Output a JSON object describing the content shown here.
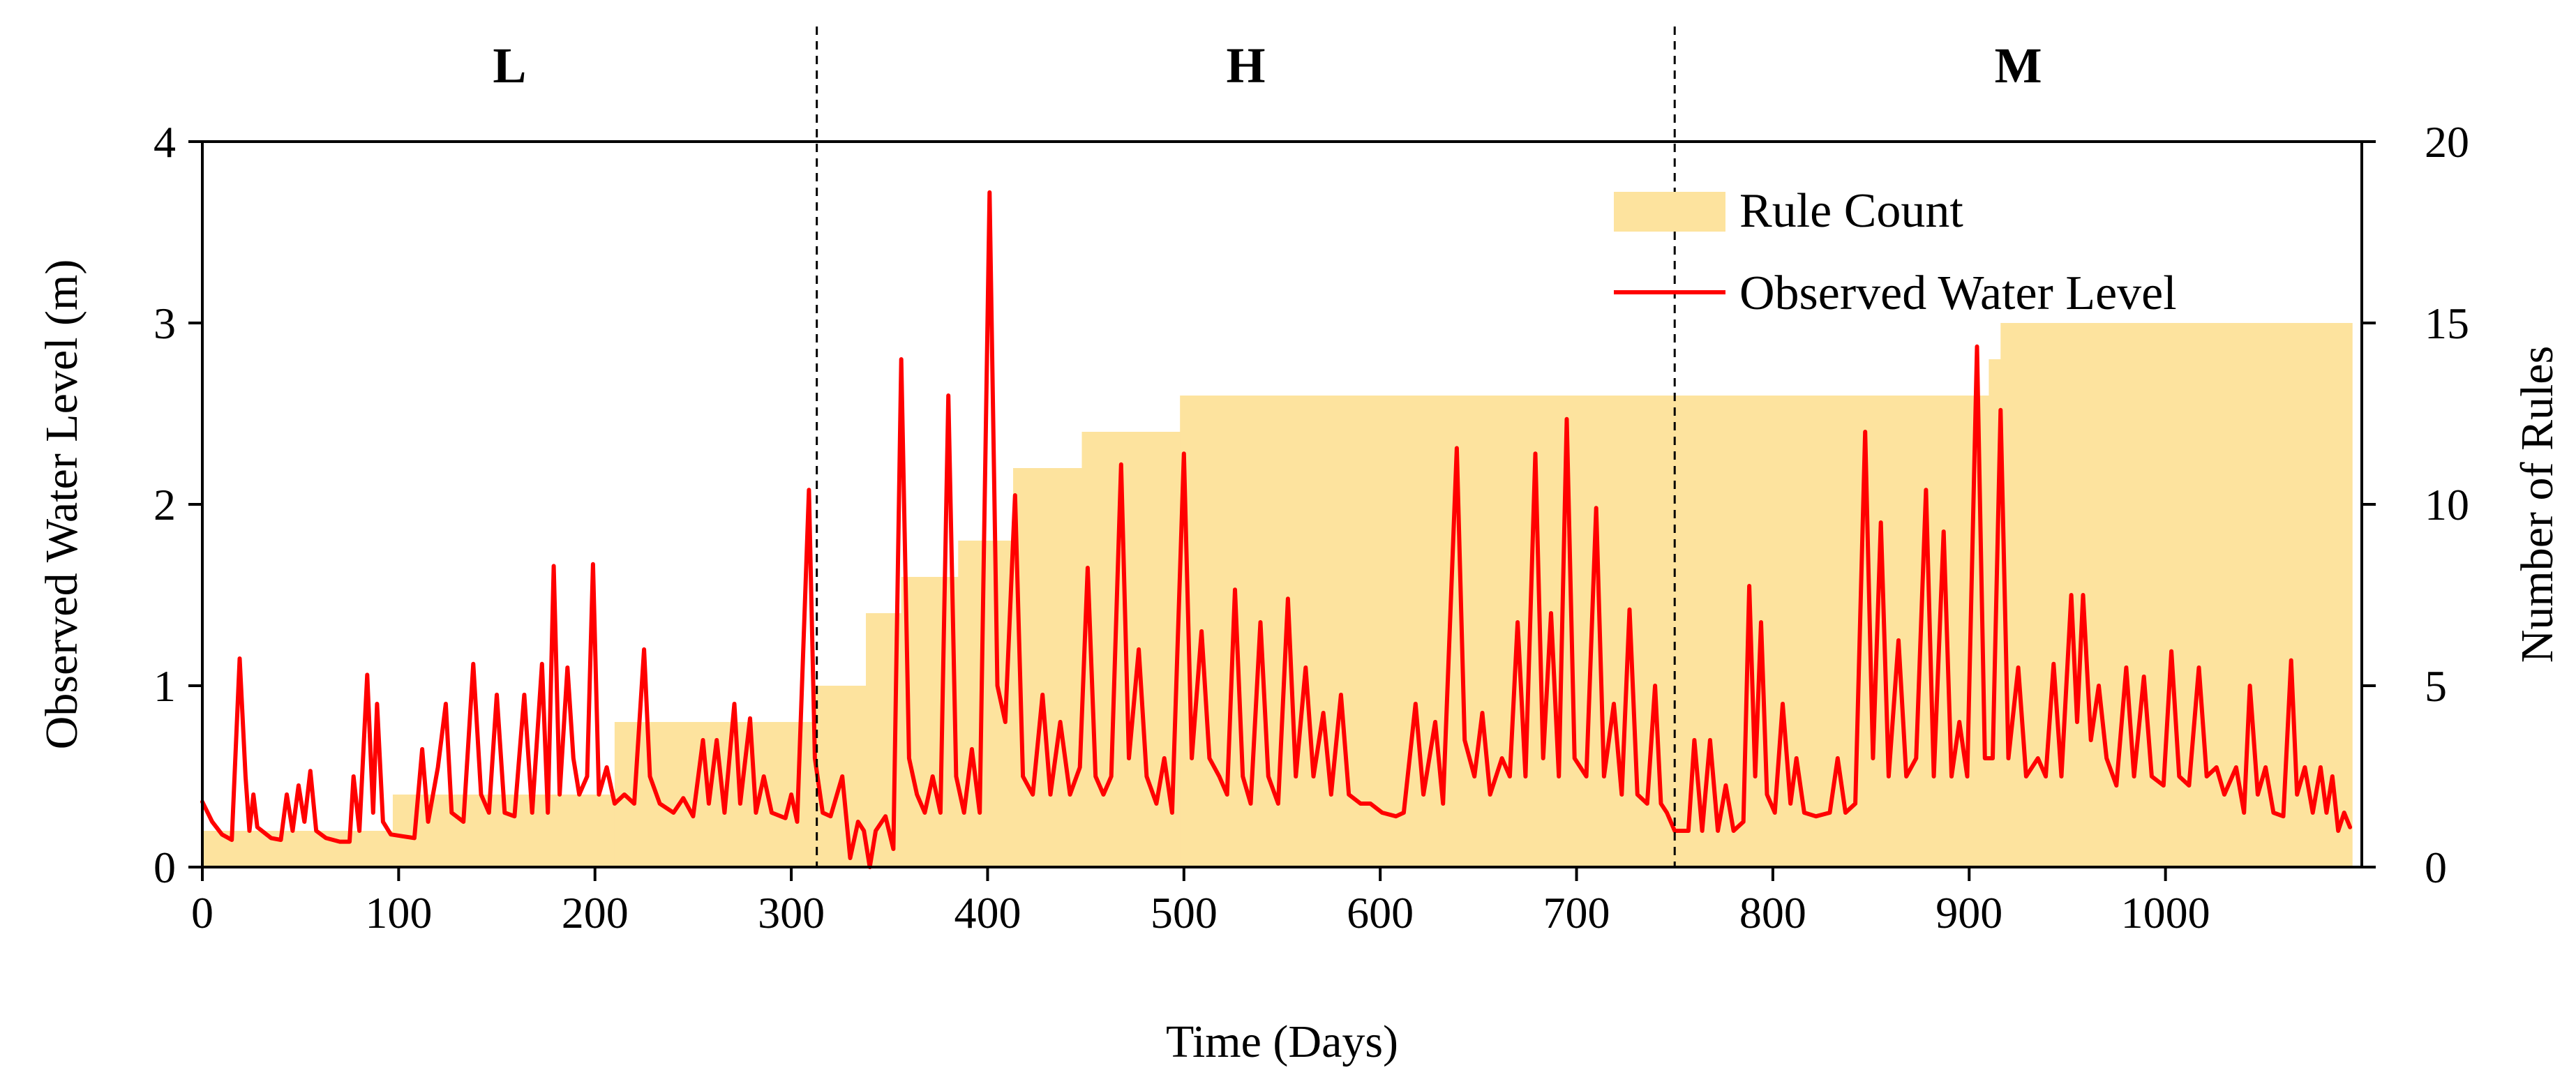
{
  "chart_data": {
    "type": "line",
    "title": "",
    "xlabel": "Time (Days)",
    "ylabel": "Observed Water Level (m)",
    "y2label": "Number of Rules",
    "xlim": [
      0,
      1100
    ],
    "ylim": [
      0,
      4
    ],
    "y2lim": [
      0,
      20
    ],
    "x_ticks": [
      0,
      100,
      200,
      300,
      400,
      500,
      600,
      700,
      800,
      900,
      1000
    ],
    "y_ticks": [
      0,
      1,
      2,
      3,
      4
    ],
    "y2_ticks": [
      0,
      5,
      10,
      15,
      20
    ],
    "legend_position": "top-right",
    "regions": [
      {
        "label": "L",
        "x_start": 0,
        "x_end": 313
      },
      {
        "label": "H",
        "x_start": 313,
        "x_end": 750
      },
      {
        "label": "M",
        "x_start": 750,
        "x_end": 1100
      }
    ],
    "dividers": [
      313,
      750
    ],
    "series": [
      {
        "name": "Rule Count",
        "kind": "step-area",
        "axis": "right",
        "color": "#fde39e",
        "steps": [
          {
            "x_start": 0,
            "x_end": 97,
            "value": 1
          },
          {
            "x_start": 97,
            "x_end": 210,
            "value": 2
          },
          {
            "x_start": 210,
            "x_end": 312,
            "value": 4
          },
          {
            "x_start": 312,
            "x_end": 338,
            "value": 5
          },
          {
            "x_start": 338,
            "x_end": 356,
            "value": 7
          },
          {
            "x_start": 356,
            "x_end": 385,
            "value": 8
          },
          {
            "x_start": 385,
            "x_end": 413,
            "value": 9
          },
          {
            "x_start": 413,
            "x_end": 448,
            "value": 11
          },
          {
            "x_start": 448,
            "x_end": 498,
            "value": 12
          },
          {
            "x_start": 498,
            "x_end": 910,
            "value": 13
          },
          {
            "x_start": 910,
            "x_end": 916,
            "value": 14
          },
          {
            "x_start": 916,
            "x_end": 1095,
            "value": 15
          }
        ]
      },
      {
        "name": "Observed Water Level",
        "kind": "line",
        "axis": "left",
        "color": "#ff0000",
        "points": [
          [
            0,
            0.36
          ],
          [
            5,
            0.25
          ],
          [
            10,
            0.18
          ],
          [
            15,
            0.15
          ],
          [
            19,
            1.15
          ],
          [
            22,
            0.5
          ],
          [
            24,
            0.2
          ],
          [
            26,
            0.4
          ],
          [
            28,
            0.22
          ],
          [
            35,
            0.16
          ],
          [
            40,
            0.15
          ],
          [
            43,
            0.4
          ],
          [
            46,
            0.2
          ],
          [
            49,
            0.45
          ],
          [
            52,
            0.25
          ],
          [
            55,
            0.53
          ],
          [
            58,
            0.2
          ],
          [
            63,
            0.16
          ],
          [
            70,
            0.14
          ],
          [
            75,
            0.14
          ],
          [
            77,
            0.5
          ],
          [
            80,
            0.2
          ],
          [
            84,
            1.06
          ],
          [
            87,
            0.3
          ],
          [
            89,
            0.9
          ],
          [
            92,
            0.25
          ],
          [
            96,
            0.18
          ],
          [
            102,
            0.17
          ],
          [
            108,
            0.16
          ],
          [
            112,
            0.65
          ],
          [
            115,
            0.25
          ],
          [
            120,
            0.55
          ],
          [
            124,
            0.9
          ],
          [
            127,
            0.3
          ],
          [
            133,
            0.25
          ],
          [
            138,
            1.12
          ],
          [
            142,
            0.4
          ],
          [
            146,
            0.3
          ],
          [
            150,
            0.95
          ],
          [
            154,
            0.3
          ],
          [
            159,
            0.28
          ],
          [
            164,
            0.95
          ],
          [
            168,
            0.3
          ],
          [
            173,
            1.12
          ],
          [
            176,
            0.3
          ],
          [
            179,
            1.66
          ],
          [
            182,
            0.4
          ],
          [
            186,
            1.1
          ],
          [
            189,
            0.6
          ],
          [
            192,
            0.4
          ],
          [
            196,
            0.5
          ],
          [
            199,
            1.67
          ],
          [
            202,
            0.4
          ],
          [
            206,
            0.55
          ],
          [
            210,
            0.35
          ],
          [
            215,
            0.4
          ],
          [
            220,
            0.35
          ],
          [
            225,
            1.2
          ],
          [
            228,
            0.5
          ],
          [
            233,
            0.35
          ],
          [
            240,
            0.3
          ],
          [
            245,
            0.38
          ],
          [
            250,
            0.28
          ],
          [
            255,
            0.7
          ],
          [
            258,
            0.35
          ],
          [
            262,
            0.7
          ],
          [
            266,
            0.3
          ],
          [
            271,
            0.9
          ],
          [
            274,
            0.35
          ],
          [
            279,
            0.82
          ],
          [
            282,
            0.3
          ],
          [
            286,
            0.5
          ],
          [
            290,
            0.3
          ],
          [
            297,
            0.27
          ],
          [
            300,
            0.4
          ],
          [
            303,
            0.25
          ],
          [
            309,
            2.08
          ],
          [
            312,
            0.6
          ],
          [
            316,
            0.3
          ],
          [
            320,
            0.28
          ],
          [
            326,
            0.5
          ],
          [
            330,
            0.05
          ],
          [
            334,
            0.25
          ],
          [
            337,
            0.2
          ],
          [
            340,
            0.0
          ],
          [
            343,
            0.2
          ],
          [
            348,
            0.28
          ],
          [
            352,
            0.1
          ],
          [
            356,
            2.8
          ],
          [
            360,
            0.6
          ],
          [
            364,
            0.4
          ],
          [
            368,
            0.3
          ],
          [
            372,
            0.5
          ],
          [
            376,
            0.3
          ],
          [
            380,
            2.6
          ],
          [
            384,
            0.5
          ],
          [
            388,
            0.3
          ],
          [
            392,
            0.65
          ],
          [
            396,
            0.3
          ],
          [
            401,
            3.72
          ],
          [
            405,
            1.0
          ],
          [
            409,
            0.8
          ],
          [
            414,
            2.05
          ],
          [
            418,
            0.5
          ],
          [
            423,
            0.4
          ],
          [
            428,
            0.95
          ],
          [
            432,
            0.4
          ],
          [
            437,
            0.8
          ],
          [
            442,
            0.4
          ],
          [
            447,
            0.55
          ],
          [
            451,
            1.65
          ],
          [
            455,
            0.5
          ],
          [
            459,
            0.4
          ],
          [
            463,
            0.5
          ],
          [
            468,
            2.22
          ],
          [
            472,
            0.6
          ],
          [
            477,
            1.2
          ],
          [
            481,
            0.5
          ],
          [
            486,
            0.35
          ],
          [
            490,
            0.6
          ],
          [
            494,
            0.3
          ],
          [
            500,
            2.28
          ],
          [
            504,
            0.6
          ],
          [
            509,
            1.3
          ],
          [
            513,
            0.6
          ],
          [
            518,
            0.5
          ],
          [
            522,
            0.4
          ],
          [
            526,
            1.53
          ],
          [
            530,
            0.5
          ],
          [
            534,
            0.35
          ],
          [
            539,
            1.35
          ],
          [
            543,
            0.5
          ],
          [
            548,
            0.35
          ],
          [
            553,
            1.48
          ],
          [
            557,
            0.5
          ],
          [
            562,
            1.1
          ],
          [
            566,
            0.5
          ],
          [
            571,
            0.85
          ],
          [
            575,
            0.4
          ],
          [
            580,
            0.95
          ],
          [
            584,
            0.4
          ],
          [
            590,
            0.35
          ],
          [
            595,
            0.35
          ],
          [
            601,
            0.3
          ],
          [
            608,
            0.28
          ],
          [
            612,
            0.3
          ],
          [
            618,
            0.9
          ],
          [
            622,
            0.4
          ],
          [
            628,
            0.8
          ],
          [
            632,
            0.35
          ],
          [
            639,
            2.31
          ],
          [
            643,
            0.7
          ],
          [
            648,
            0.5
          ],
          [
            652,
            0.85
          ],
          [
            656,
            0.4
          ],
          [
            662,
            0.6
          ],
          [
            666,
            0.5
          ],
          [
            670,
            1.35
          ],
          [
            674,
            0.5
          ],
          [
            679,
            2.28
          ],
          [
            683,
            0.6
          ],
          [
            687,
            1.4
          ],
          [
            691,
            0.5
          ],
          [
            695,
            2.47
          ],
          [
            699,
            0.6
          ],
          [
            705,
            0.5
          ],
          [
            710,
            1.98
          ],
          [
            714,
            0.5
          ],
          [
            719,
            0.9
          ],
          [
            723,
            0.4
          ],
          [
            727,
            1.42
          ],
          [
            731,
            0.4
          ],
          [
            736,
            0.35
          ],
          [
            740,
            1.0
          ],
          [
            743,
            0.35
          ],
          [
            746,
            0.3
          ],
          [
            750,
            0.2
          ],
          [
            757,
            0.2
          ],
          [
            760,
            0.7
          ],
          [
            764,
            0.2
          ],
          [
            768,
            0.7
          ],
          [
            772,
            0.2
          ],
          [
            776,
            0.45
          ],
          [
            780,
            0.2
          ],
          [
            785,
            0.25
          ],
          [
            788,
            1.55
          ],
          [
            791,
            0.5
          ],
          [
            794,
            1.35
          ],
          [
            797,
            0.4
          ],
          [
            801,
            0.3
          ],
          [
            805,
            0.9
          ],
          [
            809,
            0.35
          ],
          [
            812,
            0.6
          ],
          [
            816,
            0.3
          ],
          [
            822,
            0.28
          ],
          [
            829,
            0.3
          ],
          [
            833,
            0.6
          ],
          [
            837,
            0.3
          ],
          [
            842,
            0.35
          ],
          [
            847,
            2.4
          ],
          [
            851,
            0.6
          ],
          [
            855,
            1.9
          ],
          [
            859,
            0.5
          ],
          [
            864,
            1.25
          ],
          [
            868,
            0.5
          ],
          [
            873,
            0.6
          ],
          [
            878,
            2.08
          ],
          [
            882,
            0.5
          ],
          [
            887,
            1.85
          ],
          [
            891,
            0.5
          ],
          [
            895,
            0.8
          ],
          [
            899,
            0.5
          ],
          [
            904,
            2.87
          ],
          [
            908,
            0.6
          ],
          [
            912,
            0.6
          ],
          [
            916,
            2.52
          ],
          [
            920,
            0.6
          ],
          [
            925,
            1.1
          ],
          [
            929,
            0.5
          ],
          [
            935,
            0.6
          ],
          [
            939,
            0.5
          ],
          [
            943,
            1.12
          ],
          [
            947,
            0.5
          ],
          [
            952,
            1.5
          ],
          [
            955,
            0.8
          ],
          [
            958,
            1.5
          ],
          [
            962,
            0.7
          ],
          [
            966,
            1.0
          ],
          [
            970,
            0.6
          ],
          [
            975,
            0.45
          ],
          [
            980,
            1.1
          ],
          [
            984,
            0.5
          ],
          [
            989,
            1.05
          ],
          [
            993,
            0.5
          ],
          [
            999,
            0.45
          ],
          [
            1003,
            1.19
          ],
          [
            1007,
            0.5
          ],
          [
            1012,
            0.45
          ],
          [
            1017,
            1.1
          ],
          [
            1021,
            0.5
          ],
          [
            1026,
            0.55
          ],
          [
            1030,
            0.4
          ],
          [
            1036,
            0.55
          ],
          [
            1040,
            0.3
          ],
          [
            1043,
            1.0
          ],
          [
            1047,
            0.4
          ],
          [
            1051,
            0.55
          ],
          [
            1055,
            0.3
          ],
          [
            1060,
            0.28
          ],
          [
            1064,
            1.14
          ],
          [
            1067,
            0.4
          ],
          [
            1071,
            0.55
          ],
          [
            1075,
            0.3
          ],
          [
            1079,
            0.55
          ],
          [
            1082,
            0.3
          ],
          [
            1085,
            0.5
          ],
          [
            1088,
            0.2
          ],
          [
            1091,
            0.3
          ],
          [
            1094,
            0.22
          ]
        ]
      }
    ]
  }
}
